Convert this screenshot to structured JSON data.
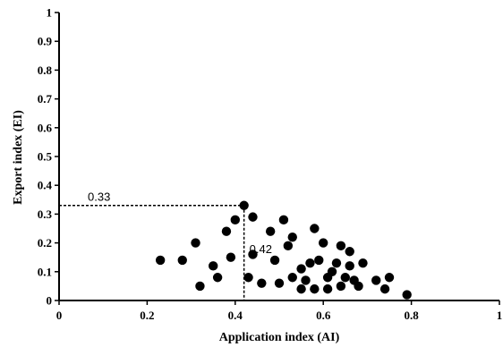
{
  "chart_data": {
    "type": "scatter",
    "title": "",
    "xlabel": "Application index (AI)",
    "ylabel": "Export index (EI)",
    "xlim": [
      0,
      1
    ],
    "ylim": [
      0,
      1
    ],
    "x_ticks": [
      "0",
      "0.2",
      "0.4",
      "0.6",
      "0.8",
      "1"
    ],
    "y_ticks": [
      "0",
      "0.1",
      "0.2",
      "0.3",
      "0.4",
      "0.5",
      "0.6",
      "0.7",
      "0.8",
      "0.9",
      "1"
    ],
    "grid": false,
    "legend": "none",
    "marker_color": "#000000",
    "annotations": [
      {
        "text": "0.33",
        "kind": "horizontal-reference",
        "x": 0.42,
        "y": 0.33
      },
      {
        "text": "0.42",
        "kind": "vertical-reference",
        "x": 0.42,
        "y": 0.33
      }
    ],
    "points": [
      {
        "x": 0.23,
        "y": 0.14
      },
      {
        "x": 0.28,
        "y": 0.14
      },
      {
        "x": 0.31,
        "y": 0.2
      },
      {
        "x": 0.32,
        "y": 0.05
      },
      {
        "x": 0.35,
        "y": 0.12
      },
      {
        "x": 0.36,
        "y": 0.08
      },
      {
        "x": 0.38,
        "y": 0.24
      },
      {
        "x": 0.39,
        "y": 0.15
      },
      {
        "x": 0.4,
        "y": 0.28
      },
      {
        "x": 0.42,
        "y": 0.33
      },
      {
        "x": 0.44,
        "y": 0.29
      },
      {
        "x": 0.43,
        "y": 0.08
      },
      {
        "x": 0.44,
        "y": 0.16
      },
      {
        "x": 0.46,
        "y": 0.06
      },
      {
        "x": 0.48,
        "y": 0.24
      },
      {
        "x": 0.49,
        "y": 0.14
      },
      {
        "x": 0.5,
        "y": 0.06
      },
      {
        "x": 0.51,
        "y": 0.28
      },
      {
        "x": 0.52,
        "y": 0.19
      },
      {
        "x": 0.53,
        "y": 0.22
      },
      {
        "x": 0.53,
        "y": 0.08
      },
      {
        "x": 0.55,
        "y": 0.11
      },
      {
        "x": 0.55,
        "y": 0.04
      },
      {
        "x": 0.56,
        "y": 0.07
      },
      {
        "x": 0.57,
        "y": 0.13
      },
      {
        "x": 0.58,
        "y": 0.25
      },
      {
        "x": 0.58,
        "y": 0.04
      },
      {
        "x": 0.59,
        "y": 0.14
      },
      {
        "x": 0.6,
        "y": 0.2
      },
      {
        "x": 0.61,
        "y": 0.04
      },
      {
        "x": 0.61,
        "y": 0.08
      },
      {
        "x": 0.62,
        "y": 0.1
      },
      {
        "x": 0.63,
        "y": 0.13
      },
      {
        "x": 0.64,
        "y": 0.05
      },
      {
        "x": 0.64,
        "y": 0.19
      },
      {
        "x": 0.65,
        "y": 0.08
      },
      {
        "x": 0.66,
        "y": 0.12
      },
      {
        "x": 0.66,
        "y": 0.17
      },
      {
        "x": 0.67,
        "y": 0.07
      },
      {
        "x": 0.68,
        "y": 0.05
      },
      {
        "x": 0.69,
        "y": 0.13
      },
      {
        "x": 0.72,
        "y": 0.07
      },
      {
        "x": 0.74,
        "y": 0.04
      },
      {
        "x": 0.75,
        "y": 0.08
      },
      {
        "x": 0.79,
        "y": 0.02
      }
    ]
  }
}
